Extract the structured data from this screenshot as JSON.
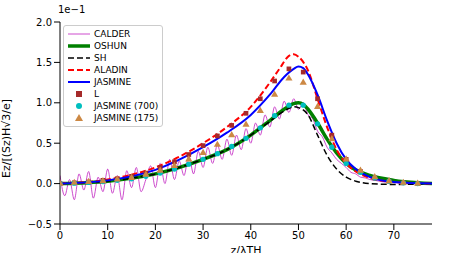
{
  "chart_data": {
    "type": "line",
    "x_label": "z/λTH",
    "y_label": "Ez/[(Sz)H√3/e]",
    "annotations": [
      "1e−1"
    ],
    "xlim": [
      0,
      78
    ],
    "xticks": [
      0,
      10,
      20,
      30,
      40,
      50,
      60,
      70
    ],
    "ylim": [
      -0.5,
      2.0
    ],
    "yticks": [
      {
        "value": -0.5,
        "label": "−0.5"
      },
      {
        "value": 0,
        "label": "0.0"
      },
      0.5,
      {
        "value": 1,
        "label": "1.0"
      },
      1.5,
      {
        "value": 2,
        "label": "2.0"
      }
    ],
    "legend": "upper left",
    "grid": false,
    "series": [
      {
        "name": "CALDER",
        "type": "line",
        "color": "#c020c0",
        "line_style": "solid",
        "x": [
          0,
          1,
          2,
          3,
          4,
          5,
          6,
          7,
          8,
          9,
          10,
          11,
          12,
          13,
          14,
          15,
          16,
          17,
          18,
          19,
          20,
          21,
          22,
          23,
          24,
          25,
          26,
          27,
          28,
          29,
          30,
          31,
          32,
          33,
          34,
          35,
          36,
          37,
          38,
          39,
          40,
          41,
          42,
          43,
          44,
          45,
          46,
          47,
          48,
          49,
          50,
          51,
          52,
          53,
          54,
          55,
          56,
          57,
          58,
          59,
          60,
          61,
          62,
          63,
          64,
          65,
          66,
          67,
          68,
          69,
          70,
          72,
          75,
          78
        ],
        "values": [
          0.1,
          -0.15,
          0.05,
          -0.2,
          0.12,
          -0.08,
          0.15,
          -0.18,
          0.08,
          -0.1,
          0.18,
          -0.12,
          0.1,
          -0.2,
          0.16,
          -0.05,
          0.2,
          -0.1,
          0.05,
          0.22,
          -0.05,
          0.25,
          0.0,
          0.3,
          0.05,
          0.28,
          0.1,
          0.35,
          0.12,
          0.4,
          0.2,
          0.45,
          0.25,
          0.48,
          0.3,
          0.55,
          0.35,
          0.6,
          0.42,
          0.68,
          0.5,
          0.75,
          0.6,
          0.85,
          0.7,
          0.95,
          0.8,
          1.02,
          0.88,
          1.05,
          0.92,
          1.0,
          0.85,
          0.8,
          0.65,
          0.58,
          0.45,
          0.38,
          0.3,
          0.25,
          0.2,
          0.14,
          0.12,
          0.08,
          0.07,
          0.05,
          0.04,
          0.03,
          0.02,
          0.02,
          0.01,
          0.01,
          0.0,
          0.0
        ]
      },
      {
        "name": "OSHUN",
        "type": "line",
        "color": "#008000",
        "line_style": "solid",
        "x": [
          0,
          10,
          20,
          30,
          35,
          40,
          44,
          47,
          49,
          50,
          51,
          52,
          54,
          56,
          58,
          60,
          62,
          65,
          70,
          75,
          78
        ],
        "values": [
          0,
          0.03,
          0.12,
          0.3,
          0.42,
          0.6,
          0.78,
          0.92,
          0.99,
          1.0,
          0.98,
          0.92,
          0.75,
          0.55,
          0.38,
          0.25,
          0.17,
          0.1,
          0.04,
          0.01,
          0
        ]
      },
      {
        "name": "SH",
        "type": "line",
        "color": "#000000",
        "line_style": "dashed",
        "x": [
          0,
          10,
          20,
          30,
          35,
          40,
          44,
          47,
          49,
          50,
          52,
          54,
          56,
          58,
          60,
          62,
          65,
          70,
          78
        ],
        "values": [
          0,
          0.03,
          0.12,
          0.3,
          0.42,
          0.6,
          0.77,
          0.9,
          0.95,
          0.94,
          0.85,
          0.6,
          0.35,
          0.18,
          0.08,
          0.03,
          0.0,
          -0.01,
          0
        ]
      },
      {
        "name": "ALADIN",
        "type": "line",
        "color": "#ff0000",
        "line_style": "dashed",
        "x": [
          0,
          10,
          20,
          30,
          35,
          40,
          44,
          46,
          48,
          49,
          50,
          52,
          54,
          56,
          58,
          60,
          62,
          65,
          70,
          78
        ],
        "values": [
          0,
          0.05,
          0.2,
          0.5,
          0.7,
          0.95,
          1.25,
          1.42,
          1.58,
          1.6,
          1.57,
          1.4,
          1.05,
          0.7,
          0.42,
          0.25,
          0.15,
          0.07,
          0.02,
          0
        ]
      },
      {
        "name": "JASMINE",
        "type": "line",
        "color": "#0000ff",
        "line_style": "solid",
        "x": [
          0,
          10,
          20,
          30,
          35,
          40,
          44,
          47,
          49,
          50,
          51,
          52,
          54,
          56,
          58,
          60,
          62,
          65,
          70,
          78
        ],
        "values": [
          0,
          0.04,
          0.17,
          0.45,
          0.63,
          0.85,
          1.1,
          1.32,
          1.42,
          1.45,
          1.43,
          1.35,
          1.1,
          0.78,
          0.5,
          0.3,
          0.18,
          0.08,
          0.02,
          0
        ]
      },
      {
        "name": "L",
        "type": "scatter",
        "color": "#a52a2a",
        "marker": "square",
        "x": [
          0,
          3,
          6,
          9,
          12,
          15,
          18,
          21,
          24,
          27,
          30,
          33,
          36,
          39,
          42,
          45,
          48,
          51,
          54,
          57,
          60,
          63,
          66,
          69,
          72,
          75
        ],
        "values": [
          0,
          0.01,
          0.02,
          0.04,
          0.06,
          0.09,
          0.13,
          0.2,
          0.27,
          0.36,
          0.47,
          0.59,
          0.72,
          0.87,
          1.05,
          1.27,
          1.42,
          1.38,
          1.05,
          0.6,
          0.3,
          0.15,
          0.07,
          0.03,
          0.01,
          0
        ]
      },
      {
        "name": "JASMINE (700)",
        "type": "scatter",
        "color": "#00bfbf",
        "marker": "circle",
        "x": [
          0,
          3,
          6,
          9,
          12,
          15,
          18,
          21,
          24,
          27,
          30,
          33,
          36,
          39,
          42,
          45,
          48,
          51,
          54,
          57,
          60,
          63,
          66,
          69,
          72,
          75
        ],
        "values": [
          0,
          0.005,
          0.015,
          0.025,
          0.04,
          0.06,
          0.09,
          0.13,
          0.18,
          0.24,
          0.3,
          0.37,
          0.46,
          0.56,
          0.69,
          0.84,
          0.97,
          0.97,
          0.74,
          0.45,
          0.25,
          0.14,
          0.07,
          0.03,
          0.01,
          0
        ]
      },
      {
        "name": "JASMINE (175)",
        "type": "scatter",
        "color": "#cc8844",
        "marker": "triangle",
        "x": [
          0,
          3,
          6,
          9,
          12,
          15,
          18,
          21,
          24,
          27,
          30,
          33,
          36,
          39,
          42,
          45,
          48,
          51,
          54,
          57,
          60,
          63,
          66,
          69,
          72,
          75
        ],
        "values": [
          0,
          0.01,
          0.02,
          0.03,
          0.05,
          0.07,
          0.11,
          0.16,
          0.22,
          0.3,
          0.38,
          0.48,
          0.6,
          0.73,
          0.9,
          1.1,
          1.3,
          1.25,
          0.95,
          0.55,
          0.3,
          0.16,
          0.08,
          0.03,
          0.01,
          0
        ]
      }
    ]
  }
}
